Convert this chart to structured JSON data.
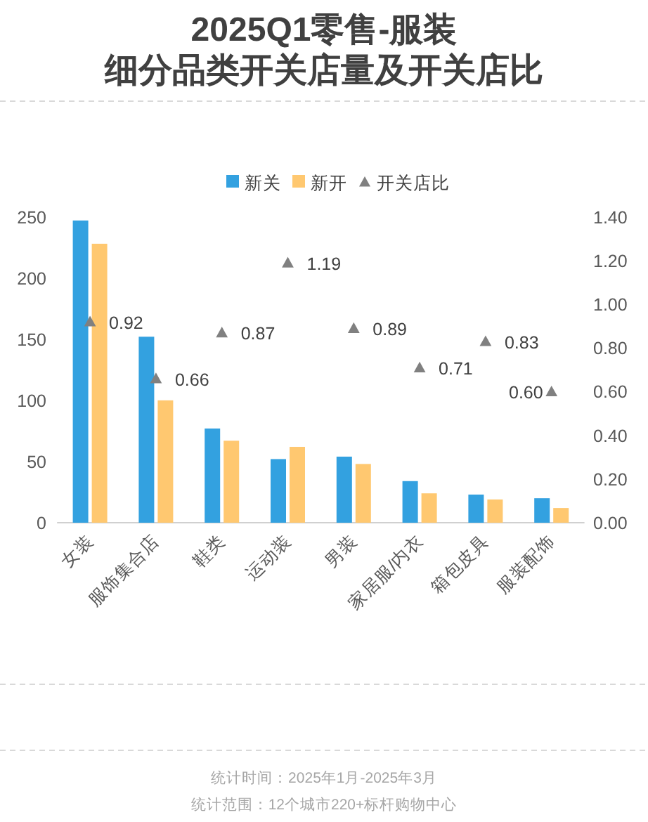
{
  "chart_data": {
    "type": "bar",
    "title": "2025Q1零售-服装",
    "subtitle": "细分品类开关店量及开关店比",
    "categories": [
      "女装",
      "服饰集合店",
      "鞋类",
      "运动装",
      "男装",
      "家居服/内衣",
      "箱包皮具",
      "服装配饰"
    ],
    "series": [
      {
        "name": "新关",
        "color": "#33a1e0",
        "values": [
          247,
          152,
          77,
          52,
          54,
          34,
          23,
          20
        ]
      },
      {
        "name": "新开",
        "color": "#ffc870",
        "values": [
          228,
          100,
          67,
          62,
          48,
          24,
          19,
          12
        ]
      },
      {
        "name": "开关店比",
        "type": "scatter",
        "axis": "y2",
        "color": "#808080",
        "values": [
          0.92,
          0.66,
          0.87,
          1.19,
          0.89,
          0.71,
          0.83,
          0.6
        ],
        "value_labels": [
          "0.92",
          "0.66",
          "0.87",
          "1.19",
          "0.89",
          "0.71",
          "0.83",
          "0.60"
        ]
      }
    ],
    "ylim": [
      0,
      250
    ],
    "yticks": [
      0,
      50,
      100,
      150,
      200,
      250
    ],
    "y2lim": [
      0,
      1.4
    ],
    "y2ticks": [
      {
        "value": 0,
        "label": "0.00"
      },
      {
        "value": 0.2,
        "label": "0.20"
      },
      {
        "value": 0.4,
        "label": "0.40"
      },
      {
        "value": 0.6,
        "label": "0.60"
      },
      {
        "value": 0.8,
        "label": "0.80"
      },
      {
        "value": 1,
        "label": "1.00"
      },
      {
        "value": 1.2,
        "label": "1.20"
      },
      {
        "value": 1.4,
        "label": "1.40"
      }
    ],
    "marker": "triangle",
    "legend": "top",
    "grid": false,
    "annotations": [
      "统计时间：2025年1月-2025年3月",
      "统计范围：12个城市220+标杆购物中心"
    ]
  }
}
